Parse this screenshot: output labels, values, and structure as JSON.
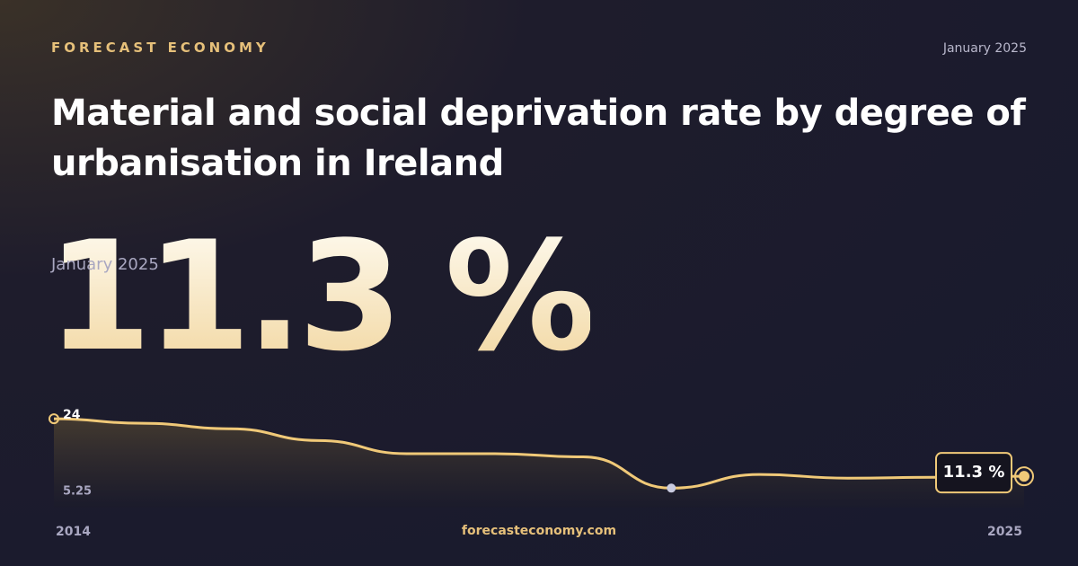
{
  "brand": "FORECAST ECONOMY",
  "date": "January 2025",
  "title": "Material and social deprivation rate by degree of urbanisation in Ireland",
  "headline": "11.3 %",
  "headline_date": "January 2025",
  "footer": "forecasteconomy.com",
  "chart_data": {
    "type": "line",
    "x": [
      2014,
      2015,
      2016,
      2017,
      2018,
      2019,
      2020,
      2021,
      2022,
      2023,
      2024,
      2025
    ],
    "values": [
      24,
      23,
      21.8,
      19.2,
      16.3,
      16.3,
      15.6,
      8.7,
      11.7,
      10.9,
      11.1,
      11.3
    ],
    "value_labels": [
      null,
      null,
      null,
      null,
      null,
      null,
      null,
      null,
      null,
      null,
      null,
      "11.3 %"
    ],
    "color": "#f0c978",
    "xlim": [
      2014,
      2025
    ],
    "xticks": [
      2014,
      2025
    ],
    "ylim": [
      4.4,
      26.2
    ],
    "yticks": [
      5.25,
      24
    ]
  }
}
